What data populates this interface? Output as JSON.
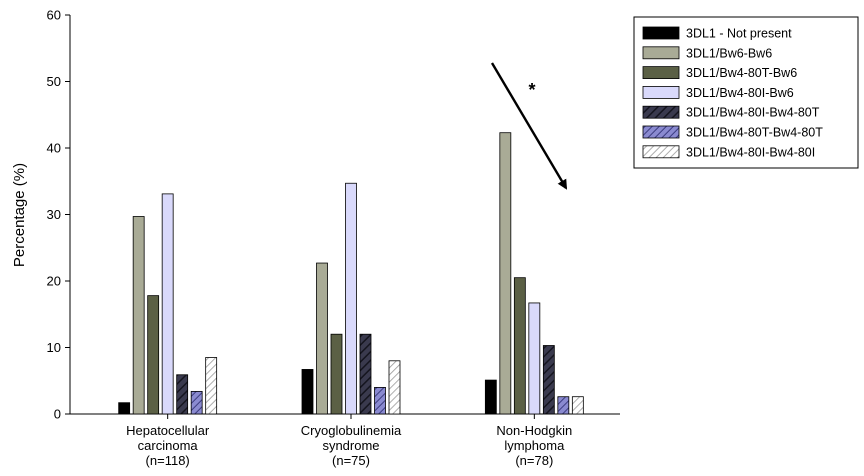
{
  "chart_data": {
    "type": "bar",
    "title": "",
    "xlabel": "",
    "ylabel": "Percentage (%)",
    "ylim": [
      0,
      60
    ],
    "yticks": [
      0,
      10,
      20,
      30,
      40,
      50,
      60
    ],
    "grid": false,
    "legend_position": "top-right",
    "categories": [
      {
        "line1": "Hepatocellular",
        "line2": "carcinoma",
        "line3": "(n=118)"
      },
      {
        "line1": "Cryoglobulinemia",
        "line2": "syndrome",
        "line3": "(n=75)"
      },
      {
        "line1": "Non-Hodgkin",
        "line2": "lymphoma",
        "line3": "(n=78)"
      }
    ],
    "series": [
      {
        "name": "3DL1 - Not present",
        "values": [
          1.7,
          6.7,
          5.1
        ],
        "color": "#000000",
        "pattern": "solid"
      },
      {
        "name": "3DL1/Bw6-Bw6",
        "values": [
          29.7,
          22.7,
          42.3
        ],
        "color": "#a9ab96",
        "pattern": "solid"
      },
      {
        "name": "3DL1/Bw4-80T-Bw6",
        "values": [
          17.8,
          12.0,
          20.5
        ],
        "color": "#5b6045",
        "pattern": "solid"
      },
      {
        "name": "3DL1/Bw4-80I-Bw6",
        "values": [
          33.1,
          34.7,
          16.7
        ],
        "color": "#d9d9fb",
        "pattern": "solid"
      },
      {
        "name": "3DL1/Bw4-80I-Bw4-80T",
        "values": [
          5.9,
          12.0,
          10.3
        ],
        "color": "#2a2a3c",
        "pattern": "dark-hatch"
      },
      {
        "name": "3DL1/Bw4-80T-Bw4-80T",
        "values": [
          3.4,
          4.0,
          2.6
        ],
        "color": "#6c6cae",
        "pattern": "blue-hatch"
      },
      {
        "name": "3DL1/Bw4-80I-Bw4-80I",
        "values": [
          8.5,
          8.0,
          2.6
        ],
        "color": "#ffffff",
        "pattern": "light-hatch"
      }
    ],
    "annotations": [
      {
        "text": "*"
      }
    ]
  }
}
